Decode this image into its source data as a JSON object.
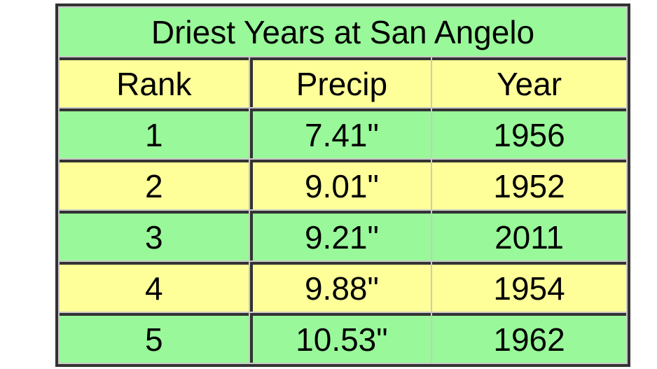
{
  "table": {
    "title": "Driest Years at San Angelo",
    "columns": [
      "Rank",
      "Precip",
      "Year"
    ],
    "rows": [
      [
        "1",
        "7.41\"",
        "1956"
      ],
      [
        "2",
        "9.01\"",
        "1952"
      ],
      [
        "3",
        "9.21\"",
        "2011"
      ],
      [
        "4",
        "9.88\"",
        "1954"
      ],
      [
        "5",
        "10.53\"",
        "1962"
      ]
    ],
    "colors": {
      "green": "#99F899",
      "yellow": "#FFFF99",
      "border_dark": "#333333",
      "spacing_gray": "#c9c9c9",
      "text": "#000000",
      "page_bg": "#ffffff"
    }
  },
  "chart_data": {
    "type": "table",
    "title": "Driest Years at San Angelo",
    "columns": [
      "Rank",
      "Precip",
      "Year"
    ],
    "rows": [
      [
        1,
        "7.41\"",
        1956
      ],
      [
        2,
        "9.01\"",
        1952
      ],
      [
        3,
        "9.21\"",
        2011
      ],
      [
        4,
        "9.88\"",
        1954
      ],
      [
        5,
        "10.53\"",
        1962
      ]
    ],
    "ranks": [
      1,
      2,
      3,
      4,
      5
    ],
    "precip_inches": [
      7.41,
      9.01,
      9.21,
      9.88,
      10.53
    ],
    "years": [
      1956,
      1952,
      2011,
      1954,
      1962
    ],
    "layout": {
      "row_color_alternation": [
        "green",
        "yellow"
      ],
      "title_row_color": "green",
      "header_row_color": "yellow",
      "grid": "dark horizontal rules between all rows; dark vertical rule between Rank and Precip; light gray spacing line between Precip and Year"
    }
  }
}
